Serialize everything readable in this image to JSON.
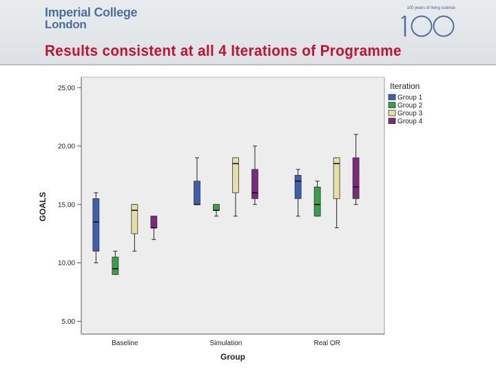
{
  "header": {
    "logo_line1": "Imperial College",
    "logo_line2": "London",
    "tagline": "100 years of living science",
    "centenary_mark": "100",
    "title": "Results consistent at all 4 Iterations of Programme"
  },
  "chart_data": {
    "type": "boxplot",
    "title": "",
    "xlabel": "Group",
    "ylabel": "GOALS",
    "categories": [
      "Baseline",
      "Simulation",
      "Real OR"
    ],
    "ylim": [
      3.9,
      25.9
    ],
    "yticks": [
      5,
      10,
      15,
      20,
      25
    ],
    "ytick_labels": [
      "5.00",
      "10.00",
      "15.00",
      "20.00",
      "25.00"
    ],
    "grid": false,
    "legend": {
      "title": "Iteration",
      "position": "right",
      "entries": [
        "Group 1",
        "Group 2",
        "Group 3",
        "Group 4"
      ]
    },
    "series": [
      {
        "name": "Group 1",
        "color": "#3f5fae",
        "boxes": [
          {
            "min": 10,
            "q1": 11,
            "median": 13.5,
            "q3": 15.5,
            "max": 16
          },
          {
            "min": 15,
            "q1": 15,
            "median": 15,
            "q3": 17,
            "max": 19
          },
          {
            "min": 14,
            "q1": 15.5,
            "median": 17,
            "q3": 17.5,
            "max": 18
          }
        ]
      },
      {
        "name": "Group 2",
        "color": "#3aa047",
        "boxes": [
          {
            "min": 9,
            "q1": 9,
            "median": 9.5,
            "q3": 10.5,
            "max": 11
          },
          {
            "min": 14,
            "q1": 14.5,
            "median": 14.5,
            "q3": 15,
            "max": 15
          },
          {
            "min": 14,
            "q1": 14,
            "median": 15,
            "q3": 16.5,
            "max": 17
          }
        ]
      },
      {
        "name": "Group 3",
        "color": "#e4dfa6",
        "boxes": [
          {
            "min": 11,
            "q1": 12.5,
            "median": 14.5,
            "q3": 15,
            "max": 15
          },
          {
            "min": 14,
            "q1": 16,
            "median": 18.5,
            "q3": 19,
            "max": 19
          },
          {
            "min": 13,
            "q1": 15.5,
            "median": 18.5,
            "q3": 19,
            "max": 19
          }
        ]
      },
      {
        "name": "Group 4",
        "color": "#7b2a7c",
        "boxes": [
          {
            "min": 12,
            "q1": 13,
            "median": 13,
            "q3": 14,
            "max": 14
          },
          {
            "min": 15,
            "q1": 15.5,
            "median": 16,
            "q3": 18,
            "max": 20
          },
          {
            "min": 15,
            "q1": 15.5,
            "median": 16.5,
            "q3": 19,
            "max": 21
          }
        ]
      }
    ]
  }
}
